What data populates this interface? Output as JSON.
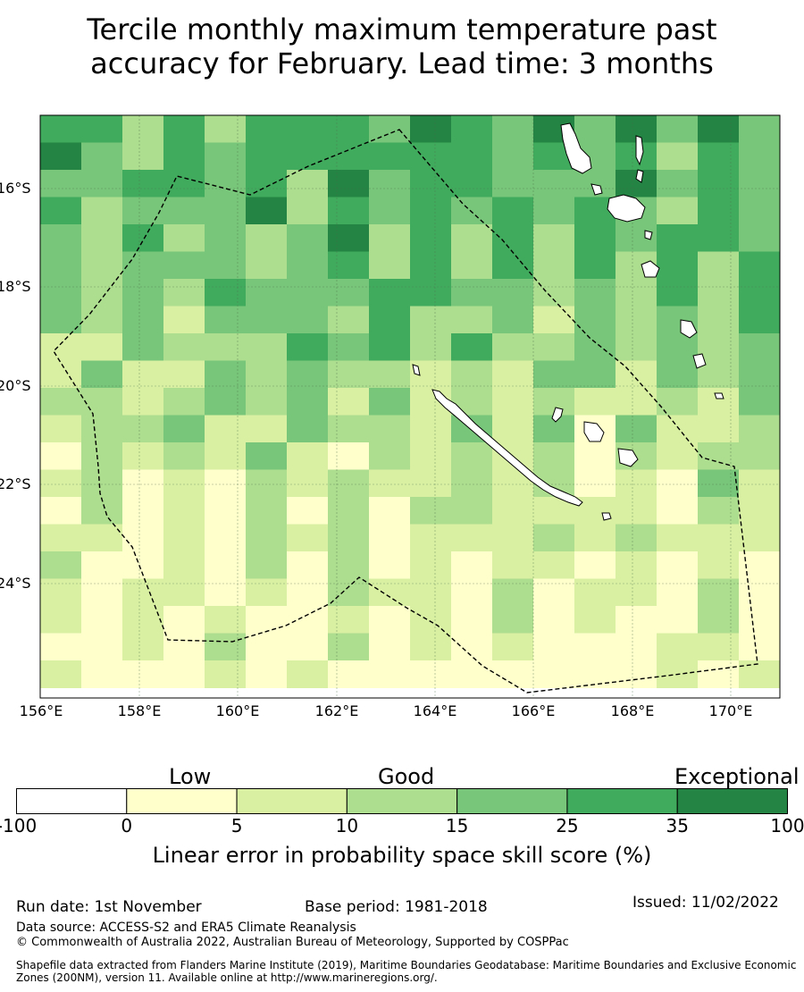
{
  "title": {
    "line1": "Tercile monthly maximum temperature past",
    "line2": "accuracy for February. Lead time: 3 months"
  },
  "map": {
    "lat_labels": [
      "16°S",
      "18°S",
      "20°S",
      "22°S",
      "24°S"
    ],
    "lon_labels": [
      "156°E",
      "158°E",
      "160°E",
      "162°E",
      "164°E",
      "166°E",
      "168°E",
      "170°E"
    ],
    "land_color": "#ffffff",
    "boundary_style": "dashed black",
    "coastline_color": "#000000"
  },
  "colorbar": {
    "categories": [
      "Low",
      "Good",
      "Exceptional"
    ],
    "ticks": [
      "-100",
      "0",
      "5",
      "10",
      "15",
      "25",
      "35",
      "100"
    ],
    "colors": [
      "#ffffff",
      "#ffffcc",
      "#d9f0a3",
      "#addd8e",
      "#78c679",
      "#41ab5d",
      "#238443"
    ],
    "label": "Linear error in probability space skill score (%)"
  },
  "footer": {
    "run_date": "Run date: 1st November",
    "base_period": "Base period: 1981-2018",
    "issued": "Issued: 11/02/2022",
    "data_source": "Data source: ACCESS-S2 and ERA5 Climate Reanalysis",
    "copyright": "© Commonwealth of Australia 2022, Australian Bureau of Meteorology, Supported by COSPPac",
    "shapefile_line1": "Shapefile data extracted from Flanders Marine Institute (2019), Maritime Boundaries Geodatabase: Maritime Boundaries and Exclusive Economic",
    "shapefile_line2": "Zones (200NM), version 11. Available online at http://www.marineregions.org/."
  }
}
